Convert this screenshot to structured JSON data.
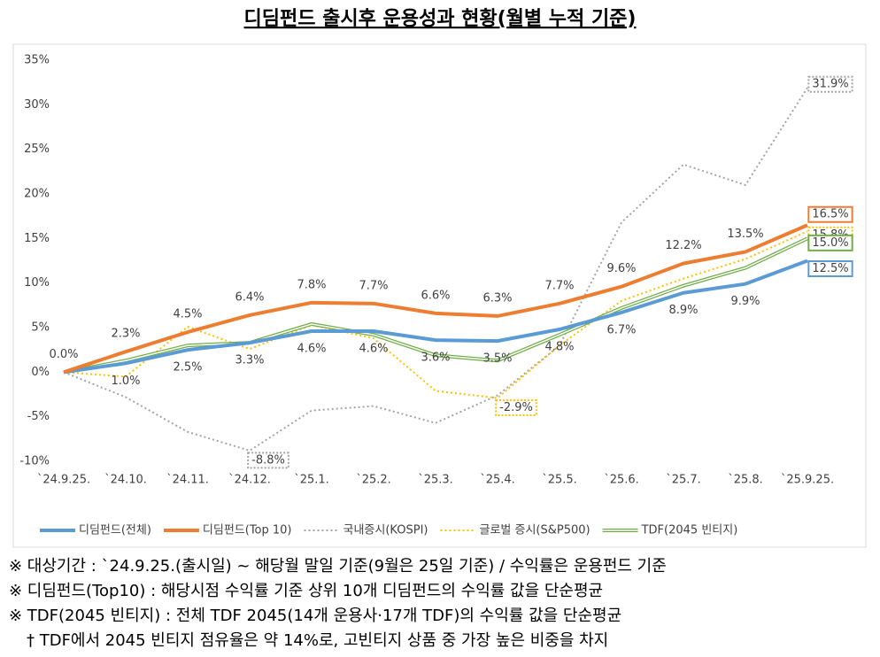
{
  "chart_data": {
    "type": "line",
    "title": "디딤펀드 출시후 운용성과 현황(월별 누적 기준)",
    "categories": [
      "`24.9.25.",
      "`24.10.",
      "`24.11.",
      "`24.12.",
      "`25.1.",
      "`25.2.",
      "`25.3.",
      "`25.4.",
      "`25.5.",
      "`25.6.",
      "`25.7.",
      "`25.8.",
      "`25.9.25."
    ],
    "ylim": [
      -10,
      35
    ],
    "yticks": [
      {
        "value": -10,
        "label": "-10%"
      },
      {
        "value": -5,
        "label": "-5%"
      },
      {
        "value": 0,
        "label": "0%"
      },
      {
        "value": 5,
        "label": "5%"
      },
      {
        "value": 10,
        "label": "10%"
      },
      {
        "value": 15,
        "label": "15%"
      },
      {
        "value": 20,
        "label": "20%"
      },
      {
        "value": 25,
        "label": "25%"
      },
      {
        "value": 30,
        "label": "30%"
      },
      {
        "value": 35,
        "label": "35%"
      }
    ],
    "grid": false,
    "legend": "bottom",
    "series": [
      {
        "name": "디딤펀드(전체)",
        "color": "#5b9bd5",
        "line_style": "solid",
        "values": [
          0,
          1.0,
          2.5,
          3.3,
          4.6,
          4.6,
          3.6,
          3.5,
          4.8,
          6.7,
          8.9,
          9.9,
          12.5
        ],
        "value_labels": [
          null,
          "1.0%",
          "2.5%",
          "3.3%",
          "4.6%",
          "4.6%",
          "3.6%",
          "3.5%",
          "4.8%",
          "6.7%",
          "8.9%",
          "9.9%",
          "12.5%"
        ]
      },
      {
        "name": "디딤펀드(Top 10)",
        "color": "#ed7d31",
        "line_style": "solid",
        "values": [
          0,
          2.3,
          4.5,
          6.4,
          7.8,
          7.7,
          6.6,
          6.3,
          7.7,
          9.6,
          12.2,
          13.5,
          16.5
        ],
        "value_labels": [
          "0.0%",
          "2.3%",
          "4.5%",
          "6.4%",
          "7.8%",
          "7.7%",
          "6.6%",
          "6.3%",
          "7.7%",
          "9.6%",
          "12.2%",
          "13.5%",
          "16.5%"
        ]
      },
      {
        "name": "국내증시(KOSPI)",
        "color": "#a5a5a5",
        "line_style": "dotted",
        "values": [
          0,
          -2.8,
          -6.7,
          -8.8,
          -4.3,
          -3.8,
          -5.7,
          -2.6,
          3.0,
          16.8,
          23.3,
          21.0,
          31.9
        ],
        "value_labels": [
          null,
          null,
          null,
          "-8.8%",
          null,
          null,
          null,
          null,
          null,
          null,
          null,
          null,
          "31.9%"
        ]
      },
      {
        "name": "글로벌 증시(S&P500)",
        "color": "#ffc000",
        "line_style": "dotted",
        "values": [
          0,
          -0.5,
          5.1,
          2.6,
          5.3,
          3.8,
          -2.1,
          -2.9,
          3.0,
          8.0,
          10.5,
          12.7,
          15.8
        ],
        "value_labels": [
          null,
          null,
          null,
          null,
          null,
          null,
          null,
          "-2.9%",
          null,
          null,
          null,
          null,
          "15.8%"
        ]
      },
      {
        "name": "TDF(2045 빈티지)",
        "color": "#70ad47",
        "line_style": "double",
        "values": [
          0,
          1.3,
          3.0,
          3.3,
          5.4,
          4.2,
          1.9,
          1.3,
          4.2,
          7.2,
          9.7,
          11.7,
          15.0
        ],
        "value_labels": [
          null,
          null,
          null,
          null,
          null,
          null,
          null,
          null,
          null,
          null,
          null,
          null,
          "15.0%"
        ]
      }
    ]
  },
  "notes": [
    "※ 대상기간 : `24.9.25.(출시일) ~ 해당월 말일 기준(9월은 25일 기준) / 수익률은 운용펀드 기준",
    "※ 디딤펀드(Top10) : 해당시점 수익률 기준 상위 10개 디딤펀드의 수익률 값을 단순평균",
    "※ TDF(2045 빈티지) : 전체 TDF 2045(14개 운용사·17개 TDF)의 수익률 값을 단순평균",
    "† TDF에서 2045 빈티지 점유율은 약 14%로, 고빈티지 상품 중 가장 높은 비중을 차지"
  ]
}
